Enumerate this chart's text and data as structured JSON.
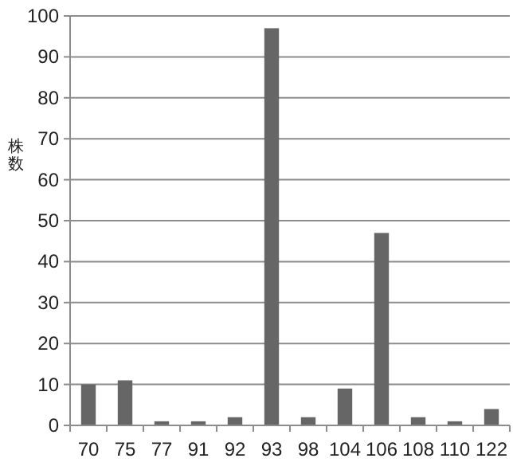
{
  "chart_data": {
    "type": "bar",
    "ylabel": "株数",
    "categories": [
      "70",
      "75",
      "77",
      "91",
      "92",
      "93",
      "98",
      "104",
      "106",
      "108",
      "110",
      "122"
    ],
    "values": [
      10,
      11,
      1,
      1,
      2,
      97,
      2,
      9,
      47,
      2,
      1,
      4
    ],
    "color": "#666666",
    "ylim": [
      0,
      100
    ],
    "yticks": [
      0,
      10,
      20,
      30,
      40,
      50,
      60,
      70,
      80,
      90,
      100
    ],
    "grid": "y"
  }
}
